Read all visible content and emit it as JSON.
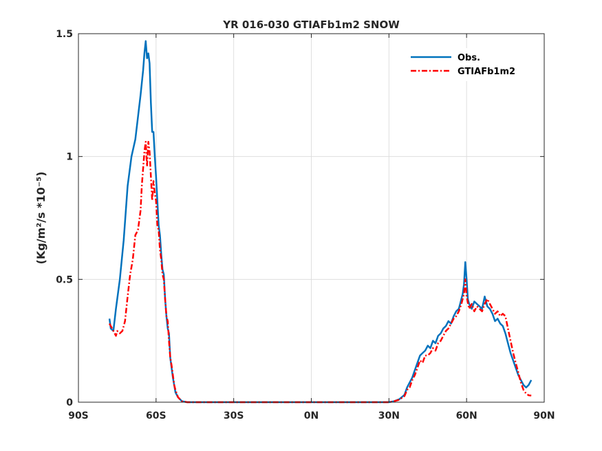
{
  "chart_data": {
    "type": "line",
    "title": "YR 016-030 GTIAFb1m2 SNOW",
    "xlabel": "",
    "ylabel": "(Kg/m²/s *10⁻⁵)",
    "xlim": [
      -90,
      90
    ],
    "ylim": [
      0,
      1.5
    ],
    "x_ticks": [
      -90,
      -60,
      -30,
      0,
      30,
      60,
      90
    ],
    "x_tick_labels": [
      "90S",
      "60S",
      "30S",
      "0N",
      "30N",
      "60N",
      "90N"
    ],
    "y_ticks": [
      0,
      0.5,
      1,
      1.5
    ],
    "y_tick_labels": [
      "0",
      "0.5",
      "1",
      "1.5"
    ],
    "grid": true,
    "legend_position": "top-right",
    "series": [
      {
        "name": "Obs.",
        "color": "#0072BD",
        "style": "solid",
        "points": [
          [
            -78,
            0.34
          ],
          [
            -77.5,
            0.3
          ],
          [
            -76.5,
            0.29
          ],
          [
            -75.5,
            0.38
          ],
          [
            -74,
            0.5
          ],
          [
            -72.5,
            0.66
          ],
          [
            -71,
            0.88
          ],
          [
            -69.5,
            1.0
          ],
          [
            -68,
            1.07
          ],
          [
            -67,
            1.16
          ],
          [
            -66,
            1.25
          ],
          [
            -65,
            1.35
          ],
          [
            -64.5,
            1.42
          ],
          [
            -64,
            1.47
          ],
          [
            -63.5,
            1.4
          ],
          [
            -63,
            1.42
          ],
          [
            -62.5,
            1.38
          ],
          [
            -62,
            1.22
          ],
          [
            -61.5,
            1.1
          ],
          [
            -61,
            1.1
          ],
          [
            -60.5,
            1.0
          ],
          [
            -60,
            0.92
          ],
          [
            -59.5,
            0.82
          ],
          [
            -59,
            0.72
          ],
          [
            -58.5,
            0.68
          ],
          [
            -58,
            0.6
          ],
          [
            -57.5,
            0.54
          ],
          [
            -57,
            0.52
          ],
          [
            -56.5,
            0.42
          ],
          [
            -56,
            0.35
          ],
          [
            -55.5,
            0.3
          ],
          [
            -55,
            0.28
          ],
          [
            -54.5,
            0.18
          ],
          [
            -54,
            0.14
          ],
          [
            -53.5,
            0.1
          ],
          [
            -53,
            0.07
          ],
          [
            -52.5,
            0.04
          ],
          [
            -51.5,
            0.02
          ],
          [
            -50,
            0.004
          ],
          [
            -48,
            0.0
          ],
          [
            -30,
            0.0
          ],
          [
            0,
            0.0
          ],
          [
            20,
            0.0
          ],
          [
            30,
            0.0
          ],
          [
            32,
            0.004
          ],
          [
            34,
            0.012
          ],
          [
            36,
            0.03
          ],
          [
            37,
            0.06
          ],
          [
            38,
            0.08
          ],
          [
            39,
            0.1
          ],
          [
            40,
            0.13
          ],
          [
            41,
            0.16
          ],
          [
            42,
            0.19
          ],
          [
            43,
            0.2
          ],
          [
            44,
            0.21
          ],
          [
            45,
            0.23
          ],
          [
            46,
            0.22
          ],
          [
            47,
            0.25
          ],
          [
            48,
            0.24
          ],
          [
            49,
            0.27
          ],
          [
            50,
            0.28
          ],
          [
            51,
            0.3
          ],
          [
            52,
            0.31
          ],
          [
            53,
            0.33
          ],
          [
            54,
            0.32
          ],
          [
            55,
            0.35
          ],
          [
            56,
            0.37
          ],
          [
            57,
            0.38
          ],
          [
            57.5,
            0.4
          ],
          [
            58,
            0.42
          ],
          [
            58.5,
            0.44
          ],
          [
            59,
            0.48
          ],
          [
            59.5,
            0.57
          ],
          [
            60,
            0.5
          ],
          [
            60.5,
            0.42
          ],
          [
            61,
            0.4
          ],
          [
            62,
            0.38
          ],
          [
            63,
            0.41
          ],
          [
            64,
            0.4
          ],
          [
            65,
            0.39
          ],
          [
            66,
            0.38
          ],
          [
            67,
            0.43
          ],
          [
            68,
            0.39
          ],
          [
            69,
            0.38
          ],
          [
            70,
            0.36
          ],
          [
            71,
            0.33
          ],
          [
            72,
            0.34
          ],
          [
            73,
            0.32
          ],
          [
            74,
            0.31
          ],
          [
            75,
            0.28
          ],
          [
            76,
            0.24
          ],
          [
            77,
            0.2
          ],
          [
            78,
            0.17
          ],
          [
            79,
            0.14
          ],
          [
            80,
            0.11
          ],
          [
            81,
            0.09
          ],
          [
            82,
            0.07
          ],
          [
            83,
            0.06
          ],
          [
            84,
            0.07
          ],
          [
            85,
            0.09
          ]
        ]
      },
      {
        "name": "GTIAFb1m2",
        "color": "#FF0000",
        "style": "dashed",
        "points": [
          [
            -78,
            0.32
          ],
          [
            -77,
            0.3
          ],
          [
            -76,
            0.28
          ],
          [
            -75.5,
            0.27
          ],
          [
            -75,
            0.29
          ],
          [
            -74,
            0.28
          ],
          [
            -73,
            0.29
          ],
          [
            -72,
            0.33
          ],
          [
            -71,
            0.43
          ],
          [
            -70,
            0.52
          ],
          [
            -69,
            0.58
          ],
          [
            -68,
            0.68
          ],
          [
            -67,
            0.7
          ],
          [
            -66,
            0.78
          ],
          [
            -65.5,
            0.88
          ],
          [
            -65,
            0.95
          ],
          [
            -64.5,
            1.02
          ],
          [
            -64,
            1.06
          ],
          [
            -63.5,
            0.96
          ],
          [
            -63,
            1.06
          ],
          [
            -62.5,
            1.02
          ],
          [
            -62,
            0.92
          ],
          [
            -61.5,
            0.82
          ],
          [
            -61,
            0.9
          ],
          [
            -60.5,
            0.85
          ],
          [
            -60,
            0.82
          ],
          [
            -59.5,
            0.72
          ],
          [
            -59,
            0.7
          ],
          [
            -58.5,
            0.62
          ],
          [
            -58,
            0.58
          ],
          [
            -57.5,
            0.52
          ],
          [
            -57,
            0.5
          ],
          [
            -56.5,
            0.42
          ],
          [
            -56,
            0.35
          ],
          [
            -55.5,
            0.33
          ],
          [
            -55,
            0.25
          ],
          [
            -54.5,
            0.18
          ],
          [
            -54,
            0.15
          ],
          [
            -53.5,
            0.11
          ],
          [
            -53,
            0.07
          ],
          [
            -52.5,
            0.05
          ],
          [
            -51.5,
            0.02
          ],
          [
            -50,
            0.004
          ],
          [
            -48,
            0.0
          ],
          [
            -30,
            0.0
          ],
          [
            0,
            0.0
          ],
          [
            20,
            0.0
          ],
          [
            30,
            0.0
          ],
          [
            32,
            0.004
          ],
          [
            34,
            0.01
          ],
          [
            36,
            0.025
          ],
          [
            37,
            0.05
          ],
          [
            38,
            0.06
          ],
          [
            39,
            0.09
          ],
          [
            40,
            0.11
          ],
          [
            41,
            0.14
          ],
          [
            42,
            0.17
          ],
          [
            43,
            0.16
          ],
          [
            44,
            0.19
          ],
          [
            45,
            0.19
          ],
          [
            46,
            0.2
          ],
          [
            47,
            0.22
          ],
          [
            48,
            0.21
          ],
          [
            49,
            0.24
          ],
          [
            50,
            0.25
          ],
          [
            51,
            0.27
          ],
          [
            52,
            0.29
          ],
          [
            53,
            0.3
          ],
          [
            54,
            0.32
          ],
          [
            55,
            0.34
          ],
          [
            56,
            0.35
          ],
          [
            57,
            0.37
          ],
          [
            58,
            0.4
          ],
          [
            58.5,
            0.42
          ],
          [
            59,
            0.44
          ],
          [
            59.5,
            0.5
          ],
          [
            60,
            0.43
          ],
          [
            61,
            0.38
          ],
          [
            62,
            0.4
          ],
          [
            63,
            0.37
          ],
          [
            64,
            0.39
          ],
          [
            65,
            0.38
          ],
          [
            66,
            0.37
          ],
          [
            67,
            0.4
          ],
          [
            68,
            0.42
          ],
          [
            69,
            0.4
          ],
          [
            70,
            0.38
          ],
          [
            71,
            0.36
          ],
          [
            72,
            0.37
          ],
          [
            73,
            0.35
          ],
          [
            74,
            0.36
          ],
          [
            75,
            0.35
          ],
          [
            76,
            0.3
          ],
          [
            77,
            0.25
          ],
          [
            78,
            0.2
          ],
          [
            79,
            0.16
          ],
          [
            80,
            0.12
          ],
          [
            81,
            0.08
          ],
          [
            82,
            0.05
          ],
          [
            83,
            0.035
          ],
          [
            84,
            0.028
          ],
          [
            85,
            0.027
          ]
        ]
      }
    ]
  }
}
